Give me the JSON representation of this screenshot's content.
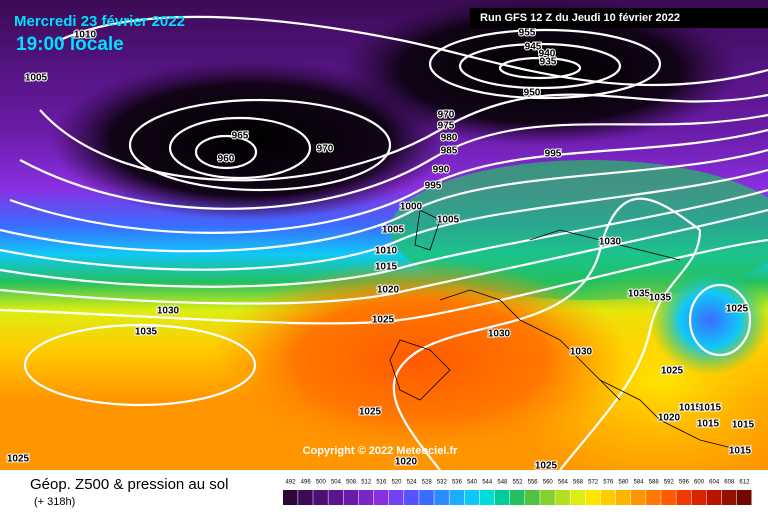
{
  "header": {
    "date": "Mercredi 23 février 2022",
    "time": "19:00 locale",
    "run": "Run GFS 12 Z du Jeudi 10 février 2022"
  },
  "copyright": "Copyright © 2022 Meteociel.fr",
  "footer": {
    "title": "Géop. Z500 & pression au sol",
    "lead": "(+ 318h)"
  },
  "isobars": [
    1005,
    1010,
    965,
    960,
    970,
    955,
    945,
    940,
    935,
    950,
    970,
    975,
    980,
    985,
    990,
    995,
    995,
    1000,
    1005,
    1005,
    1010,
    1015,
    1020,
    1025,
    1030,
    1035,
    1030,
    1030,
    1030,
    1035,
    1035,
    1025,
    1025,
    1025,
    1020,
    1025,
    1025,
    1020,
    1015,
    1015,
    1015,
    1015,
    1015
  ],
  "scale": {
    "ticks": [
      492,
      496,
      500,
      504,
      508,
      512,
      516,
      520,
      524,
      528,
      532,
      536,
      540,
      544,
      548,
      552,
      556,
      560,
      564,
      568,
      572,
      576,
      580,
      584,
      588,
      592,
      596,
      600,
      604,
      608,
      612
    ],
    "colors": [
      "#2b0838",
      "#3b0b55",
      "#4c0f72",
      "#5c158e",
      "#6a1ca8",
      "#7a26c4",
      "#8a2fe0",
      "#7440f2",
      "#5454ff",
      "#3a6cff",
      "#2a8cff",
      "#1eacff",
      "#10c8f8",
      "#00dcd8",
      "#00cc9a",
      "#22c060",
      "#52c040",
      "#84d030",
      "#b2e020",
      "#dcee10",
      "#ffe400",
      "#ffcc00",
      "#ffb400",
      "#ff9600",
      "#ff7800",
      "#ff5a00",
      "#f03a00",
      "#d82400",
      "#b81400",
      "#941000",
      "#700800"
    ]
  }
}
